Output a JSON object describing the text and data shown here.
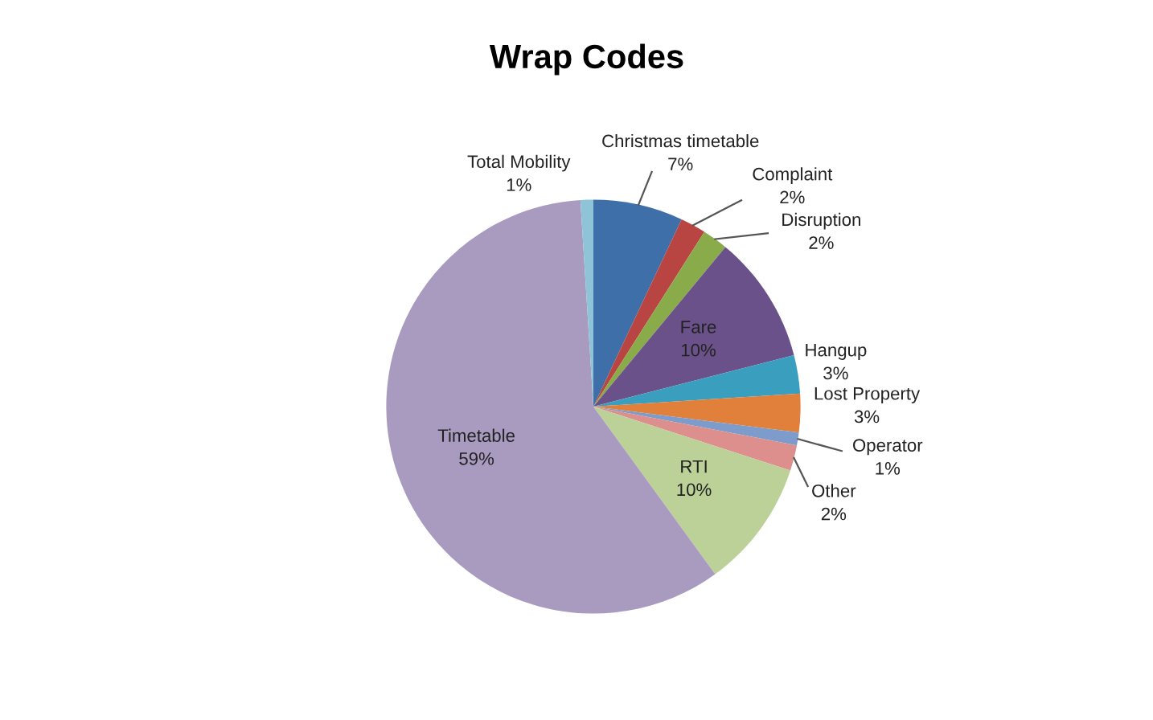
{
  "chart_data": {
    "type": "pie",
    "title": "Wrap Codes",
    "categories": [
      "Christmas timetable",
      "Complaint",
      "Disruption",
      "Fare",
      "Hangup",
      "Lost Property",
      "Operator",
      "Other",
      "RTI",
      "Timetable",
      "Total Mobility"
    ],
    "values": [
      7,
      2,
      2,
      10,
      3,
      3,
      1,
      2,
      10,
      59,
      1
    ],
    "value_labels": [
      "7%",
      "2%",
      "2%",
      "10%",
      "3%",
      "3%",
      "1%",
      "2%",
      "10%",
      "59%",
      "1%"
    ],
    "colors": [
      "#3f6fa8",
      "#b84541",
      "#8aab4a",
      "#6b5189",
      "#3a9fbf",
      "#e0803a",
      "#7e9ccb",
      "#dc8f8d",
      "#bcd197",
      "#a99bc0",
      "#8fc4d8"
    ],
    "legend": false
  }
}
